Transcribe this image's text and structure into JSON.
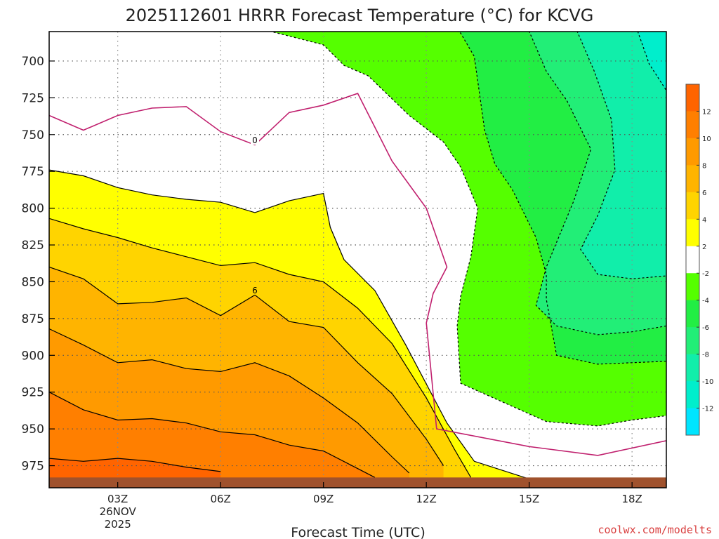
{
  "chart_data": {
    "type": "heatmap",
    "title": "2025112601 HRRR Forecast Temperature (°C) for KCVG",
    "xlabel": "Forecast Time (UTC)",
    "ylabel": "",
    "credit": "coolwx.com/modelts",
    "x_axis": {
      "unit": "hours",
      "range": [
        1,
        19
      ],
      "ticks": [
        {
          "hour": 3,
          "label": "03Z",
          "date_line1": "26NOV",
          "date_line2": "2025"
        },
        {
          "hour": 6,
          "label": "06Z"
        },
        {
          "hour": 9,
          "label": "09Z"
        },
        {
          "hour": 12,
          "label": "12Z"
        },
        {
          "hour": 15,
          "label": "15Z"
        },
        {
          "hour": 18,
          "label": "18Z"
        }
      ]
    },
    "y_axis": {
      "unit": "hPa",
      "inverted": true,
      "range": [
        680,
        990
      ],
      "ticks": [
        700,
        725,
        750,
        775,
        800,
        825,
        850,
        875,
        900,
        925,
        950,
        975
      ],
      "tick_labels": [
        "700",
        "725",
        "750",
        "775",
        "800",
        "825",
        "850",
        "875",
        "900",
        "925",
        "950",
        "975"
      ]
    },
    "grid": true,
    "ground_level_hpa": 983,
    "colorbar": {
      "position": "right",
      "labels": [
        "12",
        "10",
        "8",
        "6",
        "4",
        "2",
        "-2",
        "-4",
        "-6",
        "-8",
        "-10",
        "-12"
      ],
      "bins": [
        {
          "min": 12,
          "max": 14,
          "color": "#ff6400"
        },
        {
          "min": 10,
          "max": 12,
          "color": "#ff7f00"
        },
        {
          "min": 8,
          "max": 10,
          "color": "#ff9a00"
        },
        {
          "min": 6,
          "max": 8,
          "color": "#ffb400"
        },
        {
          "min": 4,
          "max": 6,
          "color": "#ffd400"
        },
        {
          "min": 2,
          "max": 4,
          "color": "#ffff00"
        },
        {
          "min": -2,
          "max": 2,
          "color": "#ffffff"
        },
        {
          "min": -4,
          "max": -2,
          "color": "#55ff00"
        },
        {
          "min": -6,
          "max": -4,
          "color": "#22ee44"
        },
        {
          "min": -8,
          "max": -6,
          "color": "#22ee77"
        },
        {
          "min": -10,
          "max": -8,
          "color": "#11eeaa"
        },
        {
          "min": -12,
          "max": -10,
          "color": "#00eecc"
        },
        {
          "min": -14,
          "max": -12,
          "color": "#00e5ff"
        }
      ]
    },
    "contour_labels": [
      {
        "value": "0",
        "hour": 7.0,
        "p": 754
      },
      {
        "value": "6",
        "hour": 7.0,
        "p": 856
      }
    ],
    "contours": [
      {
        "level": 2,
        "style": "solid",
        "points": [
          [
            1,
            774
          ],
          [
            2,
            778
          ],
          [
            3,
            786
          ],
          [
            4,
            791
          ],
          [
            5,
            794
          ],
          [
            6,
            796
          ],
          [
            7,
            803
          ],
          [
            8,
            795
          ],
          [
            9,
            790
          ],
          [
            9.2,
            813
          ],
          [
            9.6,
            835
          ],
          [
            10.5,
            856
          ],
          [
            11.4,
            893
          ],
          [
            12.6,
            946
          ],
          [
            13.4,
            972
          ],
          [
            15,
            984
          ]
        ]
      },
      {
        "level": 4,
        "style": "solid",
        "points": [
          [
            1,
            807
          ],
          [
            2,
            814
          ],
          [
            3,
            820
          ],
          [
            4,
            827
          ],
          [
            5,
            833
          ],
          [
            6,
            839
          ],
          [
            7,
            837
          ],
          [
            8,
            845
          ],
          [
            9,
            850
          ],
          [
            10,
            868
          ],
          [
            11,
            892
          ],
          [
            12,
            929
          ],
          [
            12.8,
            963
          ],
          [
            13.3,
            983
          ]
        ]
      },
      {
        "level": 6,
        "style": "solid",
        "points": [
          [
            1,
            840
          ],
          [
            2,
            848
          ],
          [
            3,
            865
          ],
          [
            4,
            864
          ],
          [
            5,
            861
          ],
          [
            6,
            873
          ],
          [
            7,
            859
          ],
          [
            8,
            877
          ],
          [
            9,
            881
          ],
          [
            10,
            905
          ],
          [
            11,
            926
          ],
          [
            12,
            957
          ],
          [
            12.5,
            975
          ]
        ]
      },
      {
        "level": 8,
        "style": "solid",
        "points": [
          [
            1,
            882
          ],
          [
            2,
            893
          ],
          [
            3,
            905
          ],
          [
            4,
            903
          ],
          [
            5,
            909
          ],
          [
            6,
            911
          ],
          [
            7,
            905
          ],
          [
            8,
            914
          ],
          [
            9,
            929
          ],
          [
            10,
            946
          ],
          [
            11,
            969
          ],
          [
            11.5,
            980
          ]
        ]
      },
      {
        "level": 10,
        "style": "solid",
        "points": [
          [
            1,
            925
          ],
          [
            2,
            937
          ],
          [
            3,
            944
          ],
          [
            4,
            943
          ],
          [
            5,
            946
          ],
          [
            6,
            952
          ],
          [
            7,
            954
          ],
          [
            8,
            961
          ],
          [
            9,
            965
          ],
          [
            10,
            977
          ],
          [
            10.5,
            983
          ]
        ]
      },
      {
        "level": 12,
        "style": "solid",
        "points": [
          [
            1,
            970
          ],
          [
            2,
            972
          ],
          [
            3,
            970
          ],
          [
            4,
            972
          ],
          [
            5,
            976
          ],
          [
            6,
            979
          ]
        ]
      },
      {
        "level": 0,
        "style": "solid",
        "color": "#c0206e",
        "points": [
          [
            1,
            737
          ],
          [
            2,
            747
          ],
          [
            3,
            737
          ],
          [
            4,
            732
          ],
          [
            5,
            731
          ],
          [
            6,
            748
          ],
          [
            7,
            757
          ],
          [
            8,
            735
          ],
          [
            9,
            730
          ],
          [
            10,
            722
          ],
          [
            11,
            768
          ],
          [
            12,
            800
          ],
          [
            12.6,
            840
          ],
          [
            12.2,
            858
          ],
          [
            12,
            878
          ],
          [
            12.3,
            950
          ],
          [
            15,
            962
          ],
          [
            17,
            968
          ],
          [
            19,
            958
          ]
        ]
      },
      {
        "level": -2,
        "style": "dashed",
        "points": [
          [
            6.3,
            669
          ],
          [
            6.8,
            676
          ],
          [
            8.5,
            686
          ],
          [
            9,
            689
          ],
          [
            9.6,
            703
          ],
          [
            10.3,
            710
          ],
          [
            11.5,
            737
          ],
          [
            12.5,
            755
          ],
          [
            13,
            772
          ],
          [
            13.5,
            800
          ],
          [
            13.3,
            833
          ],
          [
            13,
            860
          ],
          [
            12.9,
            880
          ],
          [
            13,
            919
          ],
          [
            15.5,
            945
          ],
          [
            17,
            948
          ],
          [
            18,
            944
          ],
          [
            19,
            941
          ]
        ]
      },
      {
        "level": -4,
        "style": "dashed",
        "points": [
          [
            12,
            669
          ],
          [
            13,
            681
          ],
          [
            13.4,
            697
          ],
          [
            13.7,
            747
          ],
          [
            14,
            770
          ],
          [
            14.5,
            787
          ],
          [
            15.2,
            820
          ],
          [
            15.5,
            845
          ],
          [
            15.5,
            862
          ],
          [
            15.8,
            900
          ],
          [
            17,
            906
          ],
          [
            18,
            905
          ],
          [
            19,
            904
          ]
        ]
      },
      {
        "level": -6,
        "style": "dashed",
        "points": [
          [
            14.8,
            669
          ],
          [
            15.5,
            707
          ],
          [
            16.1,
            727
          ],
          [
            16.8,
            760
          ],
          [
            16.3,
            795
          ],
          [
            15.5,
            840
          ],
          [
            15.2,
            866
          ],
          [
            15.8,
            880
          ],
          [
            17,
            886
          ],
          [
            18,
            884
          ],
          [
            19,
            880
          ]
        ]
      },
      {
        "level": -8,
        "style": "dashed",
        "points": [
          [
            16.2,
            669
          ],
          [
            16.9,
            707
          ],
          [
            17.4,
            740
          ],
          [
            17.5,
            774
          ],
          [
            17,
            805
          ],
          [
            16.5,
            828
          ],
          [
            17,
            845
          ],
          [
            18,
            848
          ],
          [
            19,
            846
          ]
        ]
      },
      {
        "level": -10,
        "style": "dashed",
        "points": [
          [
            18,
            669
          ],
          [
            18.5,
            702
          ],
          [
            19,
            720
          ]
        ]
      },
      {
        "level": -12,
        "style": "dashed",
        "points": [
          [
            18.8,
            669
          ],
          [
            19,
            676
          ]
        ]
      }
    ]
  }
}
